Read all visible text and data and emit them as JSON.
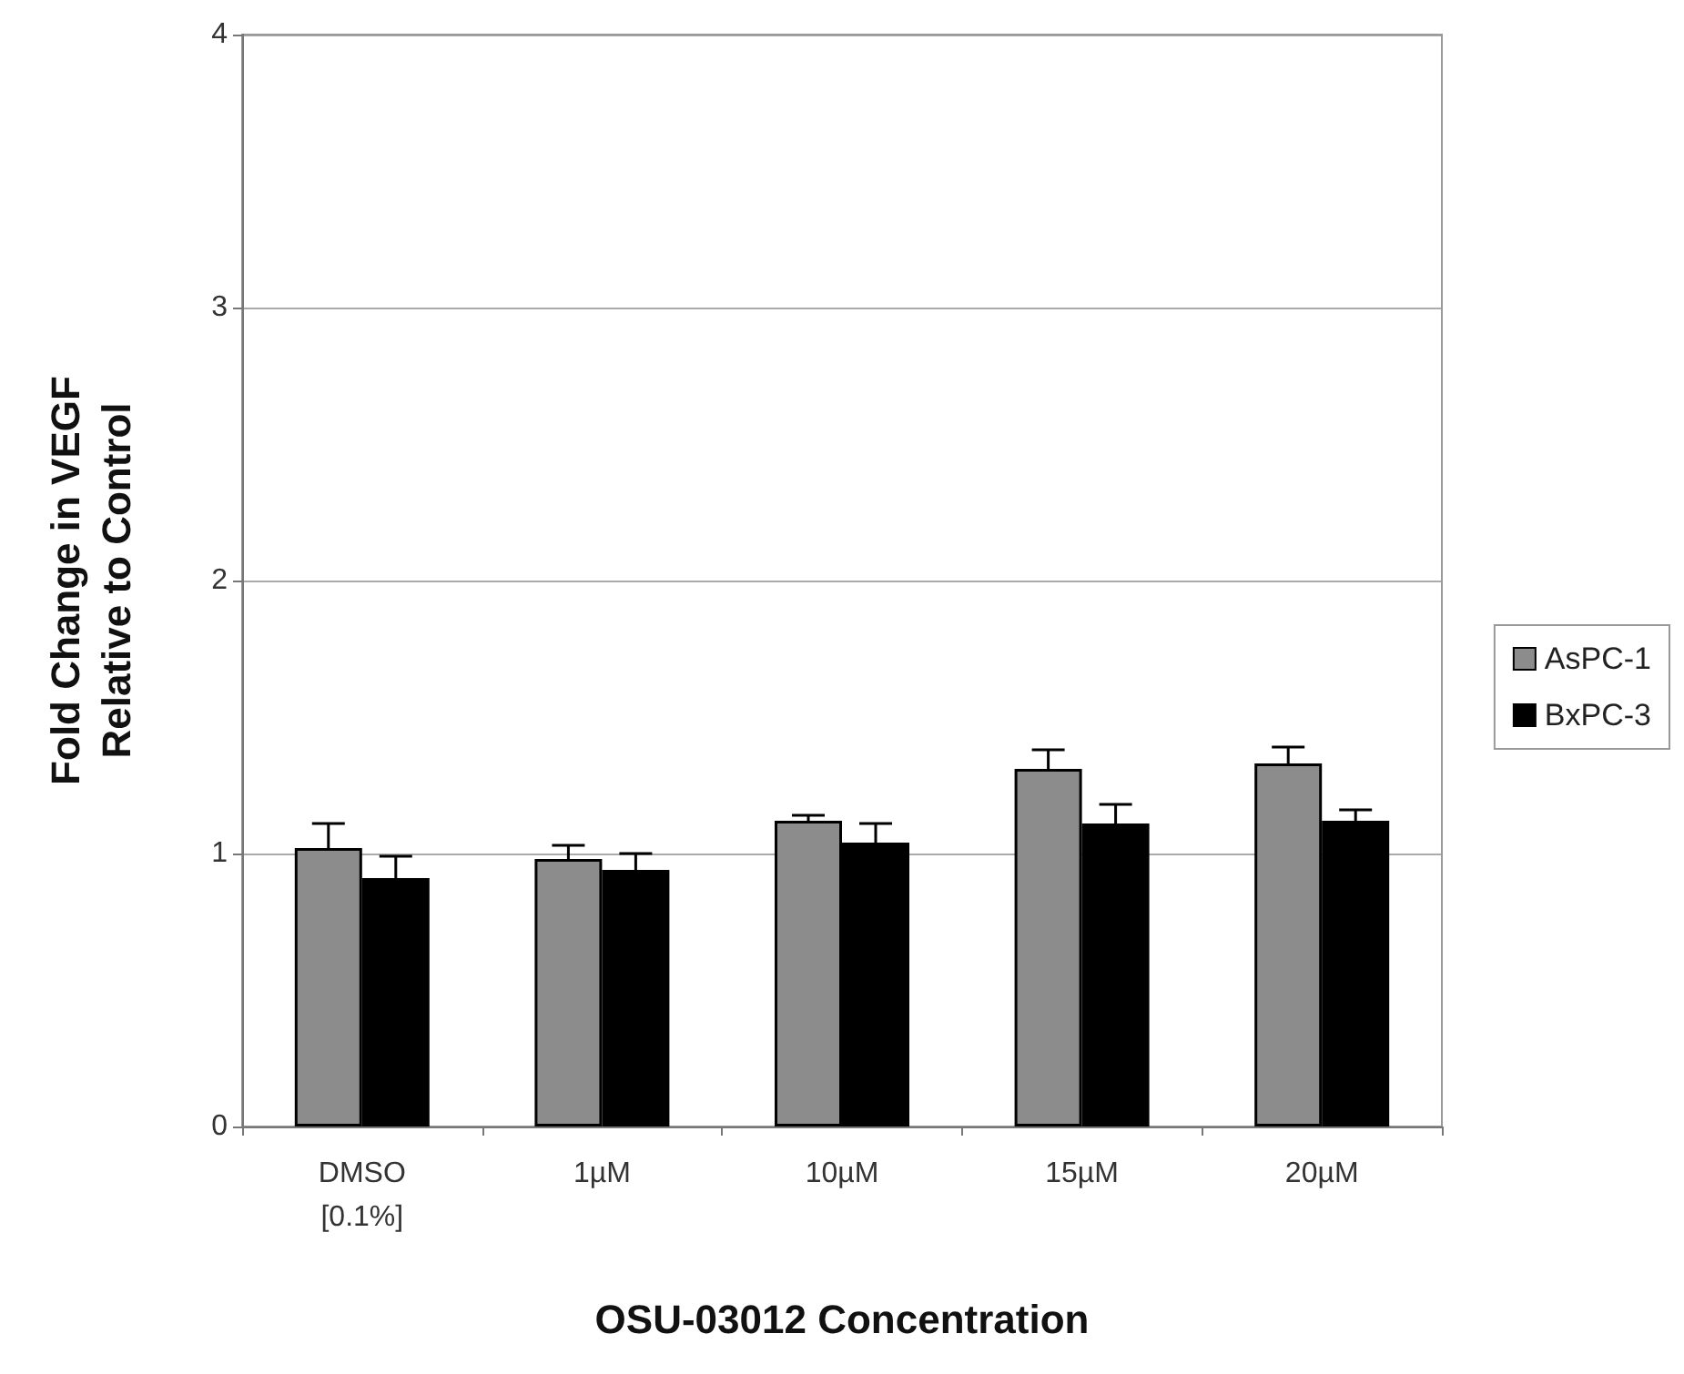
{
  "chart_data": {
    "type": "bar",
    "xlabel": "OSU-03012 Concentration",
    "ylabel": "Fold Change in VEGF\nRelative to Control",
    "categories": [
      "DMSO\n[0.1%]",
      "1µM",
      "10µM",
      "15µM",
      "20µM"
    ],
    "series": [
      {
        "name": "AsPC-1",
        "color": "#8c8c8c",
        "values": [
          1.02,
          0.98,
          1.12,
          1.31,
          1.33
        ],
        "errors": [
          0.09,
          0.05,
          0.02,
          0.07,
          0.06
        ]
      },
      {
        "name": "BxPC-3",
        "color": "#000000",
        "values": [
          0.91,
          0.94,
          1.04,
          1.11,
          1.12
        ],
        "errors": [
          0.08,
          0.06,
          0.07,
          0.07,
          0.04
        ]
      }
    ],
    "ylim": [
      0,
      4
    ],
    "yticks": [
      0,
      1,
      2,
      3,
      4
    ],
    "grid": "y",
    "legend": "right"
  }
}
